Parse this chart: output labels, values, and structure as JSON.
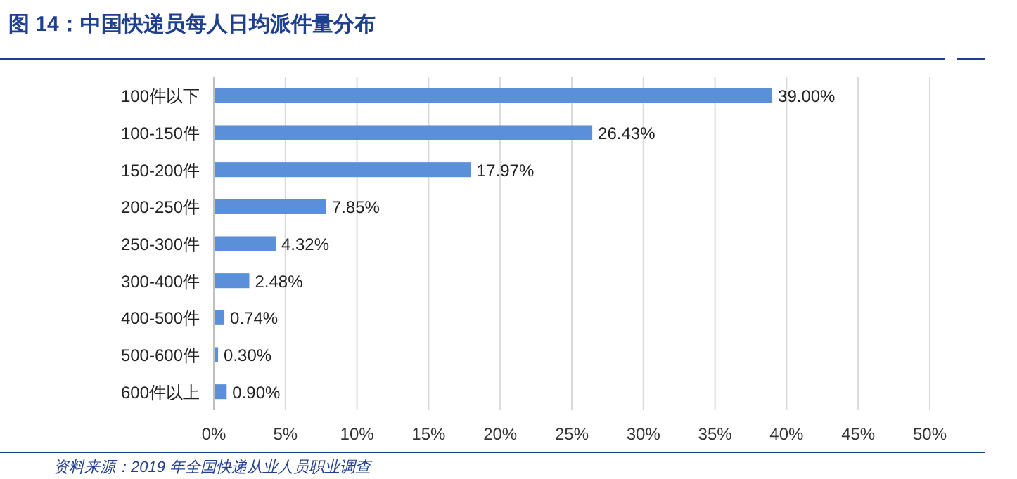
{
  "chart_data": {
    "type": "bar",
    "orientation": "horizontal",
    "title": "图 14：中国快递员每人日均派件量分布",
    "categories": [
      "100件以下",
      "100-150件",
      "150-200件",
      "200-250件",
      "250-300件",
      "300-400件",
      "400-500件",
      "500-600件",
      "600件以上"
    ],
    "values": [
      39.0,
      26.43,
      17.97,
      7.85,
      4.32,
      2.48,
      0.74,
      0.3,
      0.9
    ],
    "value_labels": [
      "39.00%",
      "26.43%",
      "17.97%",
      "7.85%",
      "4.32%",
      "2.48%",
      "0.74%",
      "0.30%",
      "0.90%"
    ],
    "color": "#5b8fd9",
    "xlim": [
      0,
      50
    ],
    "xticks": [
      {
        "value": 0,
        "label": "0%"
      },
      {
        "value": 5,
        "label": "5%"
      },
      {
        "value": 10,
        "label": "10%"
      },
      {
        "value": 15,
        "label": "15%"
      },
      {
        "value": 20,
        "label": "20%"
      },
      {
        "value": 25,
        "label": "25%"
      },
      {
        "value": 30,
        "label": "30%"
      },
      {
        "value": 35,
        "label": "35%"
      },
      {
        "value": 40,
        "label": "40%"
      },
      {
        "value": 45,
        "label": "45%"
      },
      {
        "value": 50,
        "label": "50%"
      }
    ],
    "grid": "x",
    "annotations": [
      "资料来源：2019 年全国快递从业人员职业调查"
    ]
  }
}
